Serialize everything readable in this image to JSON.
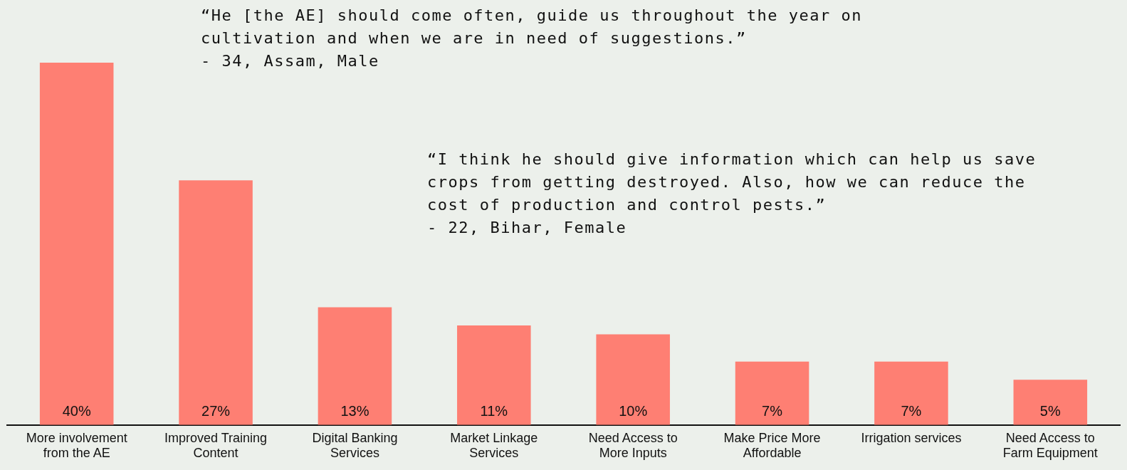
{
  "chart_data": {
    "type": "bar",
    "tick_labels": "x",
    "categories": [
      "More involvement\nfrom the AE",
      "Improved Training\nContent",
      "Digital Banking\nServices",
      "Market Linkage\nServices",
      "Need Access to\nMore Inputs",
      "Make Price More\nAffordable",
      "Irrigation services",
      "Need Access to\nFarm Equipment"
    ],
    "values": [
      40,
      27,
      13,
      11,
      10,
      7,
      7,
      5
    ],
    "value_labels": [
      "40%",
      "27%",
      "13%",
      "11%",
      "10%",
      "7%",
      "7%",
      "5%"
    ],
    "color": "#fe7f73",
    "annotations": [
      "“He [the AE] should come often, guide us throughout the year on\ncultivation and when we are in need of suggestions.”\n- 34, Assam, Male",
      "“I think he should give information which can help us save\ncrops from getting destroyed. Also, how we can reduce the\ncost of production and control pests.”\n- 22, Bihar, Female"
    ],
    "grid": false,
    "legend": false
  }
}
